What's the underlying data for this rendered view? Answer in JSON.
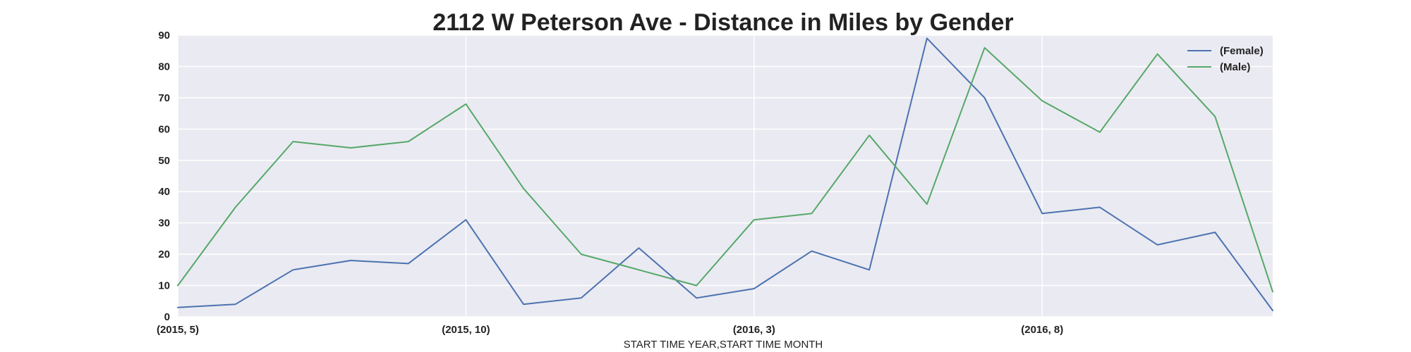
{
  "chart_data": {
    "type": "line",
    "title": "2112 W Peterson Ave - Distance in Miles by Gender",
    "xlabel": "START TIME YEAR,START TIME MONTH",
    "ylabel": "",
    "ylim": [
      0,
      90
    ],
    "yticks": [
      0,
      10,
      20,
      30,
      40,
      50,
      60,
      70,
      80,
      90
    ],
    "x": [
      "(2015, 5)",
      "(2015, 6)",
      "(2015, 7)",
      "(2015, 8)",
      "(2015, 9)",
      "(2015, 10)",
      "(2015, 11)",
      "(2015, 12)",
      "(2016, 1)",
      "(2016, 2)",
      "(2016, 3)",
      "(2016, 4)",
      "(2016, 5)",
      "(2016, 6)",
      "(2016, 7)",
      "(2016, 8)",
      "(2016, 9)",
      "(2016, 10)",
      "(2016, 11)",
      "(2016, 12)"
    ],
    "xtick_labels": [
      "(2015, 5)",
      "(2015, 10)",
      "(2016, 3)",
      "(2016, 8)"
    ],
    "grid": true,
    "legend_position": "top-right",
    "series": [
      {
        "name": "(Female)",
        "color": "#4c72b0",
        "values": [
          3,
          4,
          15,
          18,
          17,
          31,
          4,
          6,
          22,
          6,
          9,
          21,
          15,
          89,
          70,
          33,
          35,
          23,
          27,
          2
        ]
      },
      {
        "name": "(Male)",
        "color": "#55a868",
        "values": [
          10,
          35,
          56,
          54,
          56,
          68,
          41,
          20,
          15,
          10,
          31,
          33,
          58,
          36,
          86,
          69,
          59,
          84,
          64,
          8
        ]
      }
    ],
    "plot_background": "#eaeaf2",
    "grid_color": "#ffffff"
  }
}
